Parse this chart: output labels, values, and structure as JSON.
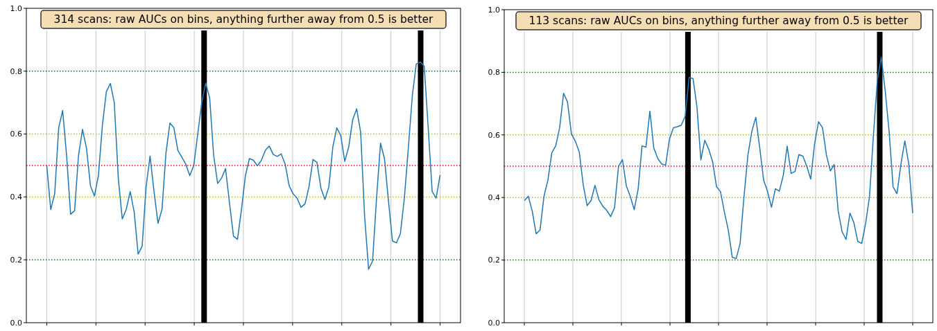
{
  "chart_data": [
    {
      "type": "line",
      "title": "314 scans: raw AUCs on bins, anything further away from 0.5 is better",
      "ylim": [
        0,
        1
      ],
      "yticks": [
        {
          "value": 0,
          "label": "0.0"
        },
        {
          "value": 0.2,
          "label": "0.2"
        },
        {
          "value": 0.4,
          "label": "0.4"
        },
        {
          "value": 0.6,
          "label": "0.6"
        },
        {
          "value": 0.8,
          "label": "0.8"
        },
        {
          "value": 1,
          "label": "1.0"
        }
      ],
      "tick_labels": "y",
      "grid": "x",
      "marker": "none",
      "line_style": "solid",
      "ref_lines": [
        {
          "axis": "y",
          "value": 0.2,
          "color": "#008000",
          "line_style": "dotted"
        },
        {
          "axis": "y",
          "value": 0.4,
          "color": "#bcbd22",
          "line_style": "dotted"
        },
        {
          "axis": "y",
          "value": 0.5,
          "color": "#ff0000",
          "line_style": "dotted"
        },
        {
          "axis": "y",
          "value": 0.6,
          "color": "#bcbd22",
          "line_style": "dotted"
        },
        {
          "axis": "y",
          "value": 0.8,
          "color": "#008000",
          "line_style": "dotted"
        }
      ],
      "categories": [
        null,
        null,
        null,
        null,
        null,
        null,
        null,
        null,
        null,
        null,
        null,
        null,
        null,
        null,
        null,
        null,
        null,
        null,
        null,
        null,
        null,
        null,
        null,
        null,
        null,
        null,
        null,
        null,
        null,
        null,
        null,
        null,
        null,
        null,
        null,
        null,
        null,
        null,
        null,
        null,
        null,
        null,
        null,
        null,
        null,
        null,
        null,
        null,
        null,
        null,
        null,
        null,
        null,
        null,
        null,
        null,
        null,
        null,
        null,
        null,
        null,
        null,
        null,
        null,
        null,
        null,
        null,
        null,
        null,
        null,
        null,
        null,
        null,
        null,
        null,
        null,
        null,
        null,
        null,
        null,
        null,
        null,
        null,
        null,
        null,
        null,
        null,
        null,
        null,
        null,
        null,
        null,
        null,
        null,
        null,
        null,
        null,
        null,
        null,
        null
      ],
      "series": [
        {
          "color": "#1f77b4",
          "values": [
            0.5,
            0.36,
            0.41,
            0.62,
            0.675,
            0.53,
            0.345,
            0.356,
            0.533,
            0.615,
            0.555,
            0.435,
            0.403,
            0.468,
            0.628,
            0.735,
            0.761,
            0.7,
            0.46,
            0.33,
            0.36,
            0.417,
            0.352,
            0.218,
            0.243,
            0.432,
            0.53,
            0.417,
            0.316,
            0.36,
            0.54,
            0.635,
            0.62,
            0.548,
            0.526,
            0.504,
            0.468,
            0.5,
            0.6,
            0.7,
            0.762,
            0.715,
            0.533,
            0.443,
            0.46,
            0.49,
            0.38,
            0.275,
            0.265,
            0.36,
            0.468,
            0.522,
            0.517,
            0.499,
            0.516,
            0.548,
            0.562,
            0.535,
            0.529,
            0.537,
            0.504,
            0.436,
            0.41,
            0.396,
            0.367,
            0.378,
            0.432,
            0.519,
            0.51,
            0.428,
            0.392,
            0.432,
            0.559,
            0.62,
            0.595,
            0.513,
            0.559,
            0.646,
            0.68,
            0.606,
            0.338,
            0.17,
            0.196,
            0.396,
            0.571,
            0.522,
            0.388,
            0.26,
            0.254,
            0.283,
            0.396,
            0.555,
            0.722,
            0.823,
            0.829,
            0.816,
            0.62,
            0.417,
            0.396,
            0.47
          ]
        }
      ]
    },
    {
      "type": "line",
      "title": "113 scans: raw AUCs on bins, anything further away from 0.5 is better",
      "ylim": [
        0,
        1
      ],
      "yticks": [
        {
          "value": 0,
          "label": "0.0"
        },
        {
          "value": 0.2,
          "label": "0.2"
        },
        {
          "value": 0.4,
          "label": "0.4"
        },
        {
          "value": 0.6,
          "label": "0.6"
        },
        {
          "value": 0.8,
          "label": "0.8"
        },
        {
          "value": 1,
          "label": "1.0"
        }
      ],
      "tick_labels": "y",
      "grid": "x",
      "marker": "none",
      "line_style": "solid",
      "ref_lines": [
        {
          "axis": "y",
          "value": 0.2,
          "color": "#008000",
          "line_style": "dotted"
        },
        {
          "axis": "y",
          "value": 0.4,
          "color": "#bcbd22",
          "line_style": "dotted"
        },
        {
          "axis": "y",
          "value": 0.5,
          "color": "#ff0000",
          "line_style": "dotted"
        },
        {
          "axis": "y",
          "value": 0.6,
          "color": "#bcbd22",
          "line_style": "dotted"
        },
        {
          "axis": "y",
          "value": 0.8,
          "color": "#008000",
          "line_style": "dotted"
        }
      ],
      "categories": [
        null,
        null,
        null,
        null,
        null,
        null,
        null,
        null,
        null,
        null,
        null,
        null,
        null,
        null,
        null,
        null,
        null,
        null,
        null,
        null,
        null,
        null,
        null,
        null,
        null,
        null,
        null,
        null,
        null,
        null,
        null,
        null,
        null,
        null,
        null,
        null,
        null,
        null,
        null,
        null,
        null,
        null,
        null,
        null,
        null,
        null,
        null,
        null,
        null,
        null,
        null,
        null,
        null,
        null,
        null,
        null,
        null,
        null,
        null,
        null,
        null,
        null,
        null,
        null,
        null,
        null,
        null,
        null,
        null,
        null,
        null,
        null,
        null,
        null,
        null,
        null,
        null,
        null,
        null,
        null,
        null,
        null,
        null,
        null,
        null,
        null,
        null,
        null,
        null,
        null,
        null,
        null,
        null,
        null,
        null,
        null,
        null,
        null,
        null,
        null
      ],
      "series": [
        {
          "color": "#1f77b4",
          "values": [
            0.39,
            0.404,
            0.357,
            0.284,
            0.296,
            0.404,
            0.455,
            0.543,
            0.565,
            0.623,
            0.733,
            0.705,
            0.603,
            0.58,
            0.545,
            0.441,
            0.374,
            0.39,
            0.439,
            0.393,
            0.372,
            0.359,
            0.339,
            0.368,
            0.499,
            0.521,
            0.437,
            0.404,
            0.361,
            0.426,
            0.565,
            0.561,
            0.676,
            0.558,
            0.525,
            0.507,
            0.503,
            0.587,
            0.623,
            0.626,
            0.631,
            0.66,
            0.784,
            0.78,
            0.689,
            0.52,
            0.583,
            0.554,
            0.514,
            0.434,
            0.419,
            0.353,
            0.295,
            0.209,
            0.205,
            0.253,
            0.404,
            0.536,
            0.612,
            0.656,
            0.559,
            0.455,
            0.419,
            0.369,
            0.428,
            0.42,
            0.47,
            0.564,
            0.477,
            0.483,
            0.537,
            0.532,
            0.5,
            0.459,
            0.572,
            0.642,
            0.623,
            0.536,
            0.485,
            0.505,
            0.357,
            0.291,
            0.266,
            0.35,
            0.32,
            0.26,
            0.253,
            0.317,
            0.404,
            0.601,
            0.777,
            0.848,
            0.74,
            0.609,
            0.434,
            0.412,
            0.507,
            0.581,
            0.507,
            0.35
          ]
        }
      ]
    }
  ]
}
